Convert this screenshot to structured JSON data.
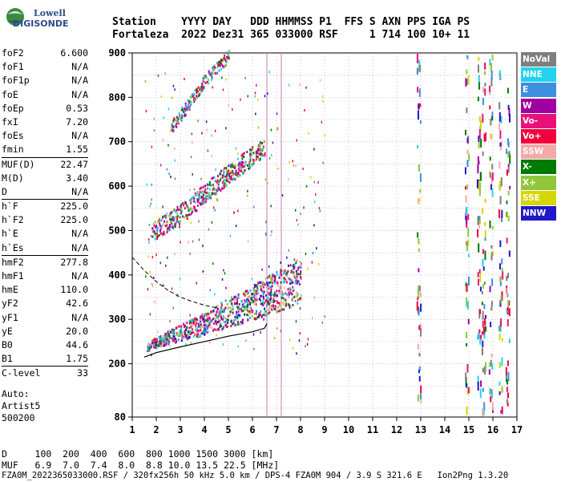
{
  "logo": {
    "line1": "Lowell",
    "line2": "DIGISONDE"
  },
  "header": {
    "line1": "Station    YYYY DAY   DDD HHMMSS P1  FFS S AXN PPS IGA PS",
    "line2": "Fortaleza  2022 Dez31 365 033000 RSF     1 714 100 10+ 11"
  },
  "params": [
    {
      "k": "foF2",
      "v": "6.600"
    },
    {
      "k": "foF1",
      "v": "N/A"
    },
    {
      "k": "foF1p",
      "v": "N/A"
    },
    {
      "k": "foE",
      "v": "N/A"
    },
    {
      "k": "foEp",
      "v": "0.53"
    },
    {
      "k": "fxI",
      "v": "7.20"
    },
    {
      "k": "foEs",
      "v": "N/A"
    },
    {
      "k": "fmin",
      "v": "1.55"
    },
    {
      "k": "MUF(D)",
      "v": "22.47"
    },
    {
      "k": "M(D)",
      "v": "3.40"
    },
    {
      "k": "D",
      "v": "N/A"
    },
    {
      "k": "h`F",
      "v": "225.0"
    },
    {
      "k": "h`F2",
      "v": "225.0"
    },
    {
      "k": "h`E",
      "v": "N/A"
    },
    {
      "k": "h`Es",
      "v": "N/A"
    },
    {
      "k": "hmF2",
      "v": "277.8"
    },
    {
      "k": "hmF1",
      "v": "N/A"
    },
    {
      "k": "hmE",
      "v": "110.0"
    },
    {
      "k": "yF2",
      "v": "42.6"
    },
    {
      "k": "yF1",
      "v": "N/A"
    },
    {
      "k": "yE",
      "v": "20.0"
    },
    {
      "k": "B0",
      "v": "44.6"
    },
    {
      "k": "B1",
      "v": "1.75"
    },
    {
      "k": "C-level",
      "v": "33"
    }
  ],
  "auto": {
    "line1": "Auto:",
    "line2": "Artist5",
    "line3": "500200"
  },
  "footer": {
    "line1": "D     100  200  400  600  800 1000 1500 3000 [km]",
    "line2": "MUF   6.9  7.0  7.4  8.0  8.8 10.0 13.5 22.5 [MHz]",
    "line3": "FZA0M_2022365033000.RSF / 320fx256h 50 kHz 5.0 km / DPS-4 FZA0M 904 / 3.9 S 321.6 E   Ion2Png 1.3.20"
  },
  "legend": [
    {
      "label": "NoVal",
      "color": "#7f7f7f"
    },
    {
      "label": "NNE",
      "color": "#22d3ee"
    },
    {
      "label": "E",
      "color": "#3d8fe0"
    },
    {
      "label": "W",
      "color": "#a0009f"
    },
    {
      "label": "Vo-",
      "color": "#e8117a"
    },
    {
      "label": "Vo+",
      "color": "#f2003c"
    },
    {
      "label": "SSW",
      "color": "#f5a9a9"
    },
    {
      "label": "X-",
      "color": "#007a00"
    },
    {
      "label": "X+",
      "color": "#8fc73e"
    },
    {
      "label": "SSE",
      "color": "#d6d600"
    },
    {
      "label": "NNW",
      "color": "#2018c8"
    }
  ],
  "chart_data": {
    "type": "scatter",
    "xlim": [
      1,
      17
    ],
    "ylim": [
      80,
      900
    ],
    "x_ticks": [
      1,
      2,
      3,
      4,
      5,
      6,
      7,
      8,
      9,
      10,
      11,
      12,
      13,
      14,
      15,
      16,
      17
    ],
    "y_ticks": [
      80,
      200,
      300,
      400,
      500,
      600,
      700,
      800,
      900
    ],
    "vertical_markers": [
      6.6,
      7.2
    ],
    "series": [
      {
        "name": "Vo-",
        "values": [
          [
            1.6,
            240
          ],
          [
            2.0,
            250
          ],
          [
            2.5,
            262
          ],
          [
            3.0,
            272
          ],
          [
            3.5,
            282
          ],
          [
            4.0,
            292
          ],
          [
            4.5,
            305
          ],
          [
            5.0,
            318
          ],
          [
            5.5,
            328
          ],
          [
            6.0,
            340
          ],
          [
            6.5,
            352
          ],
          [
            7.0,
            365
          ],
          [
            7.5,
            378
          ],
          [
            8.0,
            392
          ]
        ]
      },
      {
        "name": "NNE",
        "values": [
          [
            1.8,
            500
          ],
          [
            2.5,
            520
          ],
          [
            3.0,
            540
          ],
          [
            3.5,
            562
          ],
          [
            4.0,
            585
          ],
          [
            4.5,
            608
          ],
          [
            5.0,
            630
          ],
          [
            5.5,
            650
          ],
          [
            6.0,
            670
          ],
          [
            6.5,
            690
          ]
        ]
      },
      {
        "name": "W",
        "values": [
          [
            2.6,
            735
          ],
          [
            3.0,
            760
          ],
          [
            3.5,
            800
          ],
          [
            4.0,
            840
          ],
          [
            4.5,
            870
          ],
          [
            5.0,
            895
          ]
        ]
      }
    ],
    "profile_curve": [
      [
        1.5,
        215
      ],
      [
        2.0,
        225
      ],
      [
        3.0,
        238
      ],
      [
        4.0,
        250
      ],
      [
        5.0,
        262
      ],
      [
        6.0,
        272
      ],
      [
        6.5,
        280
      ],
      [
        6.6,
        290
      ]
    ],
    "extrapolated_curve": [
      [
        1.0,
        440
      ],
      [
        1.5,
        410
      ],
      [
        2.0,
        385
      ],
      [
        2.5,
        365
      ],
      [
        3.0,
        350
      ],
      [
        3.5,
        340
      ],
      [
        4.0,
        332
      ],
      [
        4.5,
        326
      ]
    ]
  }
}
